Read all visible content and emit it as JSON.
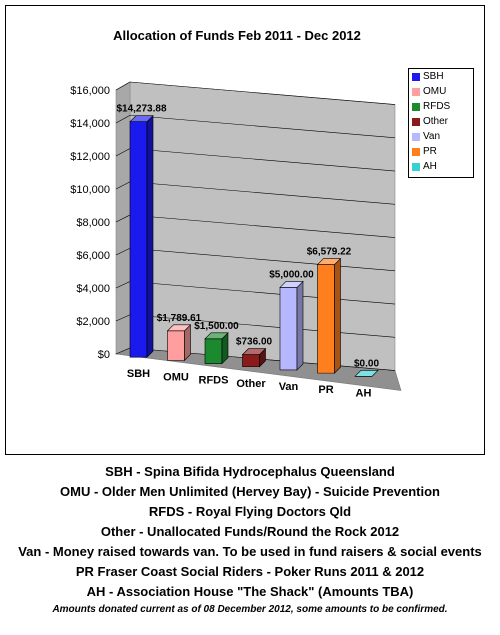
{
  "chart_data": {
    "type": "bar",
    "title": "Allocation of Funds  Feb 2011 - Dec 2012",
    "categories": [
      "SBH",
      "OMU",
      "RFDS",
      "Other",
      "Van",
      "PR",
      "AH"
    ],
    "values": [
      14273.88,
      1789.61,
      1500.0,
      736.0,
      5000.0,
      6579.22,
      0.0
    ],
    "data_labels": [
      "$14,273.88",
      "$1,789.61",
      "$1,500.00",
      "$736.00",
      "$5,000.00",
      "$6,579.22",
      "$0.00"
    ],
    "colors": [
      "#1a1aee",
      "#ff9e9e",
      "#1b8a2e",
      "#8b1a1a",
      "#b7b7ff",
      "#ff7f1e",
      "#39d0d0"
    ],
    "ylim": [
      0,
      16000
    ],
    "yticks": [
      "$0",
      "$2,000",
      "$4,000",
      "$6,000",
      "$8,000",
      "$10,000",
      "$12,000",
      "$14,000",
      "$16,000"
    ],
    "xlabel": "",
    "ylabel": "",
    "grid": true,
    "legend_position": "right"
  },
  "notes": [
    "SBH - Spina Bifida Hydrocephalus Queensland",
    "OMU - Older Men Unlimited (Hervey Bay)  - Suicide Prevention",
    "RFDS - Royal Flying Doctors Qld",
    "Other - Unallocated Funds/Round the Rock 2012",
    "Van - Money raised towards van.  To be used in fund raisers & social events",
    "PR  Fraser Coast Social Riders - Poker Runs 2011 & 2012",
    "AH - Association House \"The Shack\"     (Amounts TBA)"
  ],
  "footnote": "Amounts donated current as of 08 December 2012, some amounts to be confirmed."
}
